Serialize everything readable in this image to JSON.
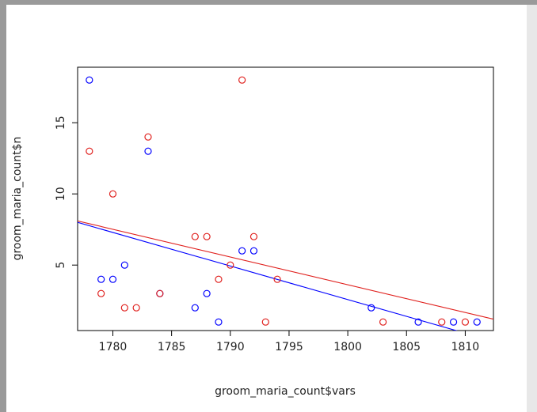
{
  "chart_data": {
    "type": "scatter",
    "xlabel": "groom_maria_count$vars",
    "ylabel": "groom_maria_count$n",
    "xlim": [
      1777,
      1812.4
    ],
    "ylim": [
      0.4,
      18.9
    ],
    "x_ticks": [
      1780,
      1785,
      1790,
      1795,
      1800,
      1805,
      1810
    ],
    "y_ticks": [
      5,
      10,
      15
    ],
    "series": [
      {
        "color": "#0000ff",
        "points": [
          [
            1778,
            18
          ],
          [
            1779,
            4
          ],
          [
            1780,
            4
          ],
          [
            1781,
            5
          ],
          [
            1783,
            13
          ],
          [
            1784,
            3
          ],
          [
            1787,
            2
          ],
          [
            1788,
            3
          ],
          [
            1789,
            1
          ],
          [
            1791,
            6
          ],
          [
            1792,
            6
          ],
          [
            1802,
            2
          ],
          [
            1806,
            1
          ],
          [
            1809,
            1
          ],
          [
            1811,
            1
          ]
        ],
        "fit_line": [
          [
            1777,
            8.0
          ],
          [
            1812.4,
            -0.35
          ]
        ]
      },
      {
        "color": "#e0201d",
        "points": [
          [
            1778,
            13
          ],
          [
            1779,
            3
          ],
          [
            1780,
            10
          ],
          [
            1781,
            2
          ],
          [
            1782,
            2
          ],
          [
            1783,
            14
          ],
          [
            1784,
            3
          ],
          [
            1787,
            7
          ],
          [
            1788,
            7
          ],
          [
            1789,
            4
          ],
          [
            1790,
            5
          ],
          [
            1791,
            18
          ],
          [
            1792,
            7
          ],
          [
            1793,
            1
          ],
          [
            1794,
            4
          ],
          [
            1803,
            1
          ],
          [
            1808,
            1
          ],
          [
            1810,
            1
          ]
        ],
        "fit_line": [
          [
            1777,
            8.1
          ],
          [
            1812.4,
            1.2
          ]
        ]
      }
    ],
    "grid": false,
    "legend": "none"
  }
}
